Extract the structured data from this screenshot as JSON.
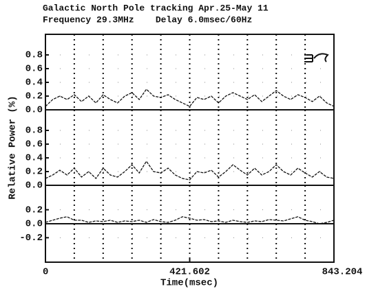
{
  "chart_data": [
    {
      "type": "line",
      "title": "Galactic North Pole tracking Apr.25-May 11",
      "subtitle": "Frequency 29.3MHz    Delay 6.0msec/60Hz",
      "ylabel": "Relative Power (%)",
      "color": "#111111",
      "xlim": [
        0,
        843.204
      ],
      "xgrid": [
        84.3204,
        168.6408,
        252.9612,
        337.2816,
        421.602,
        505.9224,
        590.2428,
        674.5632,
        758.8836
      ],
      "ylim": [
        0,
        1.1
      ],
      "yticks": [
        {
          "value": 0,
          "label": "0.0"
        },
        0.2,
        0.4,
        0.6,
        0.8
      ],
      "x": [
        0,
        21.08,
        42.16,
        63.24,
        84.32,
        105.4,
        126.48,
        147.56,
        168.64,
        189.72,
        210.8,
        231.88,
        252.96,
        274.04,
        295.12,
        316.2,
        337.28,
        358.36,
        379.44,
        400.52,
        421.6,
        442.68,
        463.76,
        484.84,
        505.92,
        527,
        548.08,
        569.16,
        590.24,
        611.32,
        632.4,
        653.48,
        674.56,
        695.64,
        716.72,
        737.8,
        758.88,
        779.96,
        801.04,
        822.12,
        843.2
      ],
      "values": [
        0.05,
        0.15,
        0.2,
        0.15,
        0.22,
        0.12,
        0.2,
        0.1,
        0.22,
        0.15,
        0.1,
        0.2,
        0.25,
        0.15,
        0.3,
        0.2,
        0.18,
        0.22,
        0.15,
        0.1,
        0.05,
        0.18,
        0.15,
        0.2,
        0.1,
        0.2,
        0.25,
        0.2,
        0.15,
        0.22,
        0.12,
        0.2,
        0.28,
        0.2,
        0.15,
        0.22,
        0.18,
        0.12,
        0.2,
        0.1,
        0.05
      ]
    },
    {
      "type": "line",
      "color": "#111111",
      "xlim": [
        0,
        843.204
      ],
      "xgrid": [
        84.3204,
        168.6408,
        252.9612,
        337.2816,
        421.602,
        505.9224,
        590.2428,
        674.5632,
        758.8836
      ],
      "ylim": [
        0,
        1.1
      ],
      "yticks": [
        {
          "value": 0,
          "label": "0.0"
        },
        0.2,
        0.4,
        0.6,
        0.8
      ],
      "x": [
        0,
        21.08,
        42.16,
        63.24,
        84.32,
        105.4,
        126.48,
        147.56,
        168.64,
        189.72,
        210.8,
        231.88,
        252.96,
        274.04,
        295.12,
        316.2,
        337.28,
        358.36,
        379.44,
        400.52,
        421.6,
        442.68,
        463.76,
        484.84,
        505.92,
        527,
        548.08,
        569.16,
        590.24,
        611.32,
        632.4,
        653.48,
        674.56,
        695.64,
        716.72,
        737.8,
        758.88,
        779.96,
        801.04,
        822.12,
        843.2
      ],
      "values": [
        0.1,
        0.15,
        0.22,
        0.15,
        0.25,
        0.12,
        0.2,
        0.1,
        0.25,
        0.15,
        0.12,
        0.2,
        0.3,
        0.18,
        0.35,
        0.2,
        0.18,
        0.25,
        0.15,
        0.1,
        0.08,
        0.2,
        0.18,
        0.22,
        0.12,
        0.2,
        0.3,
        0.22,
        0.15,
        0.25,
        0.15,
        0.2,
        0.3,
        0.2,
        0.15,
        0.25,
        0.18,
        0.12,
        0.2,
        0.12,
        0.1
      ]
    },
    {
      "type": "line",
      "color": "#111111",
      "xlabel": "Time(msec)",
      "xlim": [
        0,
        843.204
      ],
      "xticks": [
        0,
        421.602,
        843.204
      ],
      "xgrid": [
        84.3204,
        168.6408,
        252.9612,
        337.2816,
        421.602,
        505.9224,
        590.2428,
        674.5632,
        758.8836
      ],
      "ylim": [
        -0.55,
        0.55
      ],
      "yticks": [
        0.2,
        {
          "value": 0,
          "label": "0.0"
        },
        -0.2
      ],
      "x": [
        0,
        21.08,
        42.16,
        63.24,
        84.32,
        105.4,
        126.48,
        147.56,
        168.64,
        189.72,
        210.8,
        231.88,
        252.96,
        274.04,
        295.12,
        316.2,
        337.28,
        358.36,
        379.44,
        400.52,
        421.6,
        442.68,
        463.76,
        484.84,
        505.92,
        527,
        548.08,
        569.16,
        590.24,
        611.32,
        632.4,
        653.48,
        674.56,
        695.64,
        716.72,
        737.8,
        758.88,
        779.96,
        801.04,
        822.12,
        843.2
      ],
      "values": [
        0.02,
        0.05,
        0.08,
        0.1,
        0.05,
        0.05,
        0.02,
        0.04,
        0.03,
        0.05,
        0.02,
        0.04,
        0.03,
        0.05,
        0.02,
        0.06,
        0.03,
        0.02,
        0.05,
        0.1,
        0.08,
        0.05,
        0.06,
        0.03,
        0.04,
        0.02,
        0.05,
        0.03,
        0.02,
        0.04,
        0.03,
        0.06,
        0.05,
        0.04,
        0.07,
        0.1,
        0.05,
        0.03,
        0.0,
        0.02,
        0.05
      ]
    }
  ]
}
